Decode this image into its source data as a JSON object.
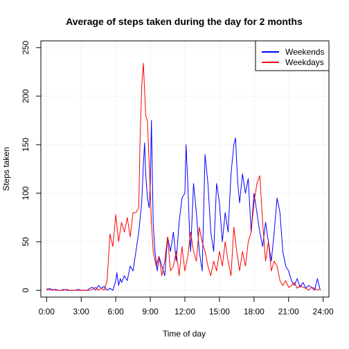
{
  "chart_data": {
    "type": "line",
    "title": "Average of steps taken during the day for 2 months",
    "xlabel": "Time of day",
    "ylabel": "Steps taken",
    "xlim": [
      -0.5,
      24.5
    ],
    "ylim": [
      -7,
      257
    ],
    "x_ticks": [
      {
        "value": 0,
        "label": "0:00"
      },
      {
        "value": 3,
        "label": "3:00"
      },
      {
        "value": 6,
        "label": "6:00"
      },
      {
        "value": 9,
        "label": "9:00"
      },
      {
        "value": 12,
        "label": "12:00"
      },
      {
        "value": 15,
        "label": "15:00"
      },
      {
        "value": 18,
        "label": "18:00"
      },
      {
        "value": 21,
        "label": "21:00"
      },
      {
        "value": 24,
        "label": "24:00"
      }
    ],
    "y_ticks": [
      {
        "value": 0,
        "label": "0"
      },
      {
        "value": 50,
        "label": "50"
      },
      {
        "value": 100,
        "label": "100"
      },
      {
        "value": 150,
        "label": "150"
      },
      {
        "value": 200,
        "label": "200"
      },
      {
        "value": 250,
        "label": "250"
      }
    ],
    "grid": true,
    "legend_position": "top-right",
    "series": [
      {
        "name": "Weekends",
        "color": "#0000ff",
        "x": [
          0,
          0.25,
          0.5,
          0.75,
          1,
          1.25,
          1.5,
          1.75,
          2,
          2.25,
          2.5,
          2.75,
          3,
          3.25,
          3.5,
          3.75,
          4,
          4.25,
          4.5,
          4.75,
          5,
          5.25,
          5.5,
          5.75,
          6,
          6.1,
          6.25,
          6.4,
          6.5,
          6.75,
          7,
          7.25,
          7.5,
          7.75,
          8,
          8.25,
          8.4,
          8.5,
          8.6,
          8.75,
          8.9,
          9,
          9.1,
          9.25,
          9.4,
          9.5,
          9.6,
          9.75,
          10,
          10.25,
          10.5,
          10.75,
          11,
          11.25,
          11.5,
          11.75,
          12,
          12.1,
          12.25,
          12.4,
          12.5,
          12.75,
          13,
          13.25,
          13.5,
          13.75,
          14,
          14.25,
          14.5,
          14.75,
          15,
          15.25,
          15.5,
          15.75,
          16,
          16.25,
          16.4,
          16.5,
          16.6,
          16.75,
          17,
          17.25,
          17.5,
          17.75,
          18,
          18.25,
          18.5,
          18.75,
          19,
          19.25,
          19.5,
          19.75,
          20,
          20.25,
          20.5,
          20.75,
          21,
          21.25,
          21.5,
          21.75,
          22,
          22.25,
          22.5,
          22.75,
          23,
          23.25,
          23.5,
          23.75
        ],
        "y": [
          0,
          2,
          0,
          1,
          0,
          0,
          1,
          0,
          0,
          0,
          0,
          1,
          0,
          0,
          0,
          2,
          3,
          0,
          5,
          2,
          4,
          0,
          2,
          0,
          10,
          18,
          5,
          12,
          8,
          15,
          10,
          25,
          20,
          40,
          60,
          90,
          130,
          152,
          120,
          95,
          85,
          110,
          175,
          70,
          40,
          30,
          20,
          35,
          25,
          15,
          55,
          40,
          60,
          30,
          70,
          95,
          100,
          150,
          110,
          60,
          40,
          110,
          80,
          40,
          20,
          140,
          110,
          60,
          40,
          110,
          90,
          50,
          80,
          60,
          120,
          150,
          157,
          130,
          110,
          90,
          120,
          100,
          115,
          60,
          100,
          80,
          60,
          45,
          70,
          50,
          30,
          60,
          95,
          80,
          40,
          25,
          20,
          10,
          5,
          12,
          3,
          8,
          2,
          5,
          3,
          0,
          12,
          0
        ]
      },
      {
        "name": "Weekdays",
        "color": "#ff0000",
        "x": [
          0,
          0.25,
          0.5,
          0.75,
          1,
          1.25,
          1.5,
          1.75,
          2,
          2.25,
          2.5,
          2.75,
          3,
          3.25,
          3.5,
          3.75,
          4,
          4.25,
          4.5,
          4.75,
          5,
          5.25,
          5.5,
          5.75,
          6,
          6.25,
          6.5,
          6.75,
          7,
          7.25,
          7.5,
          7.75,
          8,
          8.1,
          8.25,
          8.4,
          8.5,
          8.6,
          8.75,
          9,
          9.1,
          9.25,
          9.5,
          9.75,
          10,
          10.25,
          10.5,
          10.75,
          11,
          11.25,
          11.5,
          11.75,
          12,
          12.25,
          12.5,
          12.75,
          13,
          13.25,
          13.5,
          13.75,
          14,
          14.25,
          14.5,
          14.75,
          15,
          15.25,
          15.5,
          15.75,
          16,
          16.25,
          16.5,
          16.75,
          17,
          17.25,
          17.5,
          17.75,
          18,
          18.25,
          18.5,
          18.75,
          19,
          19.25,
          19.5,
          19.75,
          20,
          20.25,
          20.5,
          20.75,
          21,
          21.25,
          21.5,
          21.75,
          22,
          22.25,
          22.5,
          22.75,
          23,
          23.25,
          23.5,
          23.75
        ],
        "y": [
          2,
          0,
          1,
          0,
          0,
          0,
          0,
          1,
          0,
          0,
          0,
          0,
          0,
          0,
          0,
          0,
          1,
          3,
          0,
          2,
          0,
          10,
          58,
          45,
          78,
          50,
          70,
          60,
          75,
          55,
          80,
          80,
          85,
          150,
          210,
          234,
          205,
          180,
          175,
          100,
          70,
          40,
          25,
          35,
          15,
          30,
          55,
          20,
          25,
          40,
          15,
          45,
          20,
          35,
          60,
          40,
          30,
          65,
          50,
          40,
          25,
          15,
          30,
          20,
          40,
          25,
          50,
          30,
          15,
          65,
          40,
          20,
          40,
          25,
          50,
          60,
          90,
          110,
          118,
          70,
          30,
          50,
          20,
          30,
          25,
          10,
          5,
          10,
          3,
          5,
          8,
          2,
          5,
          3,
          2,
          0,
          3,
          2,
          0,
          1
        ]
      }
    ]
  }
}
